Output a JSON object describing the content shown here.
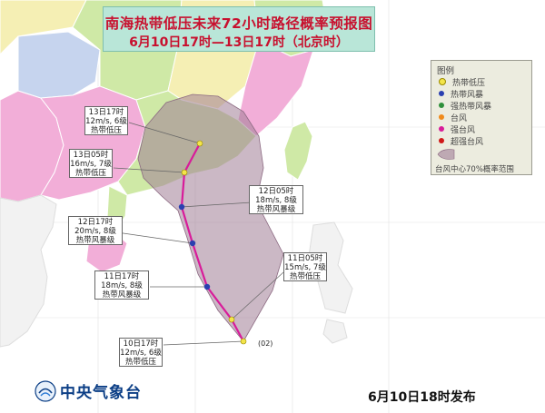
{
  "title": {
    "line1": "南海热带低压未来72小时路径概率预报图",
    "line2": "6月10日17时—13日17时（北京时）"
  },
  "legend": {
    "heading": "图例",
    "items": [
      {
        "label": "热带低压",
        "color": "#f3e54a"
      },
      {
        "label": "热带风暴",
        "color": "#2a3fb0"
      },
      {
        "label": "强热带风暴",
        "color": "#2f8f3a"
      },
      {
        "label": "台风",
        "color": "#f08a1a"
      },
      {
        "label": "强台风",
        "color": "#d81c9a"
      },
      {
        "label": "超强台风",
        "color": "#d01818"
      }
    ],
    "probability_label": "台风中心70%概率范围"
  },
  "forecast_points": [
    {
      "time": "10日17时",
      "speed": "12m/s, 6级",
      "category": "热带低压"
    },
    {
      "time": "11日05时",
      "speed": "15m/s, 7级",
      "category": "热带低压"
    },
    {
      "time": "11日17时",
      "speed": "18m/s, 8级",
      "category": "热带风暴级"
    },
    {
      "time": "12日05时",
      "speed": "18m/s, 8级",
      "category": "热带风暴级"
    },
    {
      "time": "12日17时",
      "speed": "20m/s, 8级",
      "category": "热带风暴级"
    },
    {
      "time": "13日05时",
      "speed": "16m/s, 7级",
      "category": "热带低压"
    },
    {
      "time": "13日17时",
      "speed": "12m/s, 6级",
      "category": "热带低压"
    }
  ],
  "storm_id": "(02)",
  "logo_text": "中央气象台",
  "issue_time": "6月10日18时发布",
  "colors": {
    "sea": "#ffffff",
    "land_green": "#cfe9a6",
    "land_pink": "#f2aed8",
    "land_yellow": "#f5efb4",
    "land_blue": "#c6d4ee",
    "cone": "#a07d96",
    "track": "#d81c9a"
  }
}
